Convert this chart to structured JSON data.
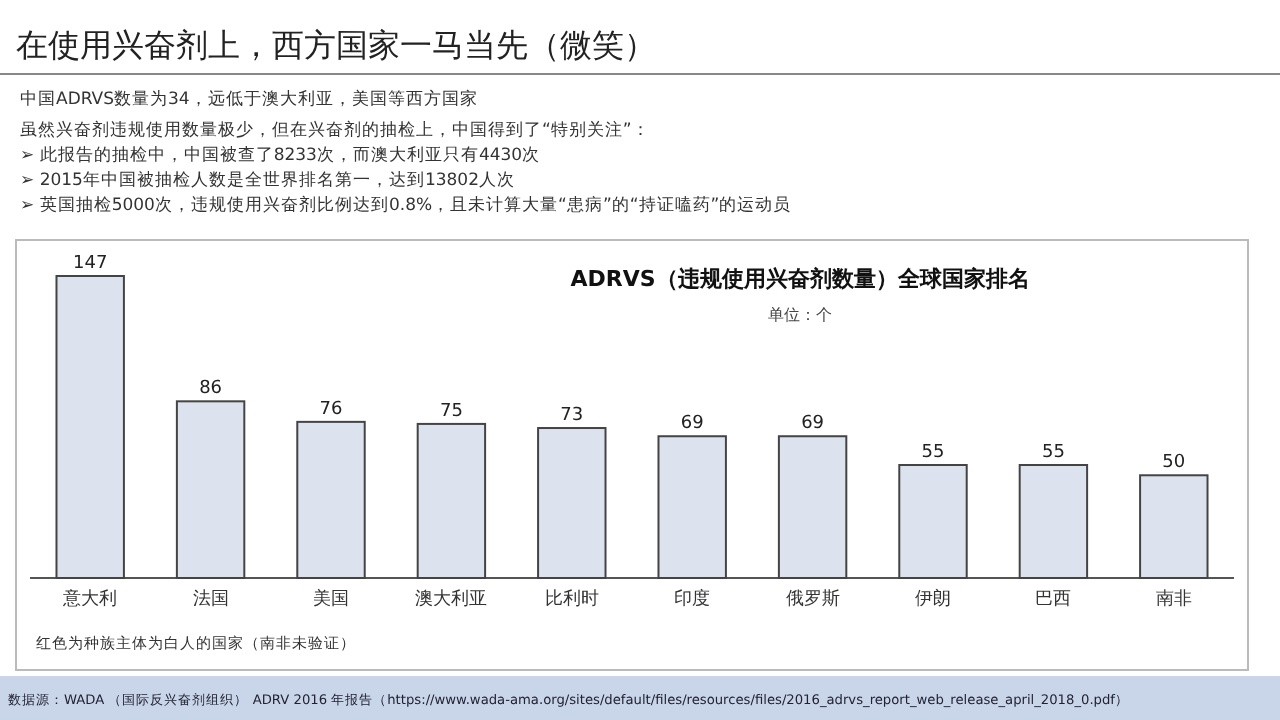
{
  "chart_data": {
    "type": "bar",
    "title": "ADRVS（违规使用兴奋剂数量）全球国家排名",
    "subtitle": "单位：个",
    "categories": [
      "意大利",
      "法国",
      "美国",
      "澳大利亚",
      "比利时",
      "印度",
      "俄罗斯",
      "伊朗",
      "巴西",
      "南非"
    ],
    "values": [
      147,
      86,
      76,
      75,
      73,
      69,
      69,
      55,
      55,
      50
    ],
    "color": "#dde3ee",
    "data_labels": true,
    "annotations": [
      "在使用兴奋剂上，西方国家一马当先（微笑）",
      "中国ADRVS数量为34，远低于澳大利亚，美国等西方国家",
      "虽然兴奋剂违规使用数量极少，但在兴奋剂的抽检上，中国得到了“特别关注”：",
      "➢  此报告的抽检中，中国被查了8233次，而澳大利亚只有4430次",
      "➢  2015年中国被抽检人数是全世界排名第一，达到13802人次",
      "➢  英国抽检5000次，违规使用兴奋剂比例达到0.8%，且未计算大量“患病”的“持证嗑药”的运动员",
      "红色为种族主体为白人的国家（南非未验证）",
      "数据源：WADA （国际反兴奋剂组织） ADRV 2016 年报告（https://www.wada-ama.org/sites/default/files/resources/files/2016_adrvs_report_web_release_april_2018_0.pdf）"
    ]
  }
}
